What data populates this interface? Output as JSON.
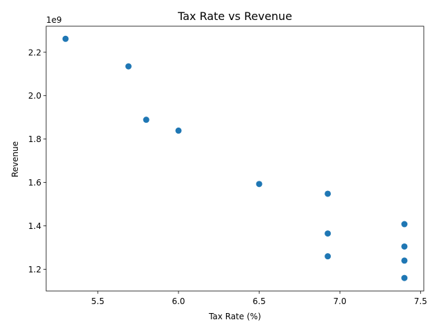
{
  "chart_data": {
    "type": "scatter",
    "title": "Tax Rate vs Revenue",
    "xlabel": "Tax Rate (%)",
    "ylabel": "Revenue",
    "y_offset_label": "1e9",
    "xlim": [
      5.18,
      7.52
    ],
    "ylim": [
      1.1,
      2.32
    ],
    "x_ticks": [
      5.5,
      6.0,
      6.5,
      7.0,
      7.5
    ],
    "x_tick_labels": [
      "5.5",
      "6.0",
      "6.5",
      "7.0",
      "7.5"
    ],
    "y_ticks": [
      1.2,
      1.4,
      1.6,
      1.8,
      2.0,
      2.2
    ],
    "y_tick_labels": [
      "1.2",
      "1.4",
      "1.6",
      "1.8",
      "2.0",
      "2.2"
    ],
    "grid": false,
    "marker_color": "#1f77b4",
    "points": [
      {
        "x": 5.3,
        "y": 2.262
      },
      {
        "x": 5.69,
        "y": 2.135
      },
      {
        "x": 5.8,
        "y": 1.889
      },
      {
        "x": 6.0,
        "y": 1.839
      },
      {
        "x": 6.5,
        "y": 1.593
      },
      {
        "x": 6.925,
        "y": 1.548
      },
      {
        "x": 7.4,
        "y": 1.408
      },
      {
        "x": 6.925,
        "y": 1.365
      },
      {
        "x": 7.4,
        "y": 1.305
      },
      {
        "x": 6.925,
        "y": 1.26
      },
      {
        "x": 7.4,
        "y": 1.24
      },
      {
        "x": 7.4,
        "y": 1.16
      }
    ]
  }
}
